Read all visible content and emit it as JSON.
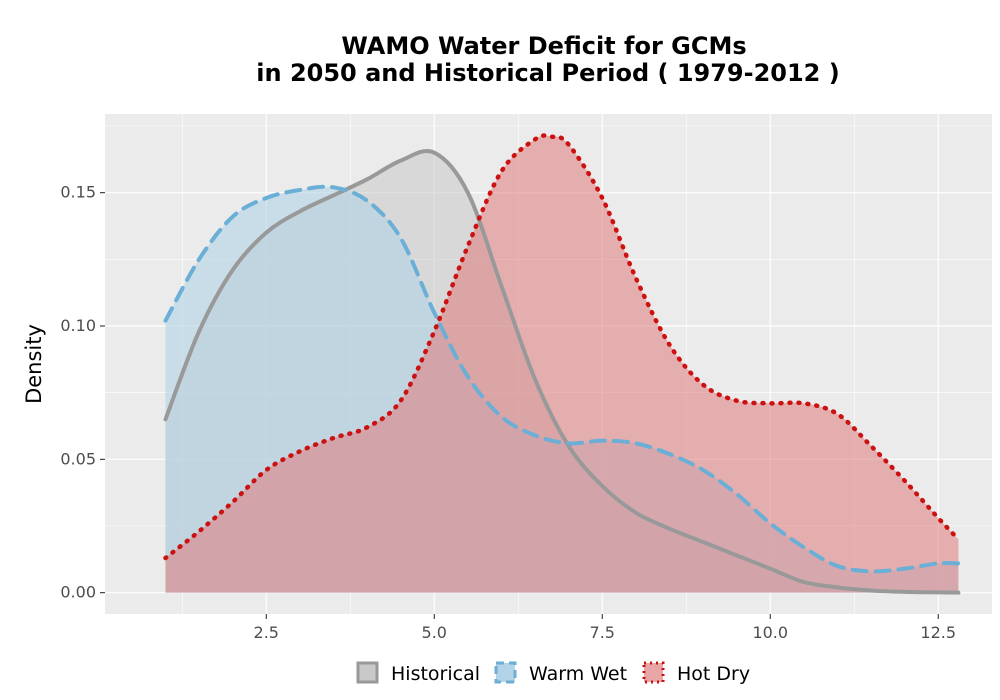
{
  "chart_data": {
    "type": "area",
    "title_line1": "WAMO  Water Deficit for GCMs",
    "title_line2": "in 2050 and Historical Period ( 1979-2012 )",
    "xlabel": "",
    "ylabel": "Density",
    "xlim": [
      0.1,
      13.3
    ],
    "ylim": [
      -0.008,
      0.1795
    ],
    "x_ticks": [
      2.5,
      5.0,
      7.5,
      10.0,
      12.5
    ],
    "x_tick_labels": [
      "2.5",
      "5.0",
      "7.5",
      "10.0",
      "12.5"
    ],
    "y_ticks": [
      0.0,
      0.05,
      0.1,
      0.15
    ],
    "y_tick_labels": [
      "0.00",
      "0.05",
      "0.10",
      "0.15"
    ],
    "grid": true,
    "legend_position": "bottom",
    "series": [
      {
        "name": "Historical",
        "fill": "#c9c9c9",
        "line": "#999999",
        "line_style": "solid",
        "x": [
          1.0,
          1.5,
          2.0,
          2.5,
          3.0,
          3.5,
          4.0,
          4.5,
          5.0,
          5.5,
          6.0,
          6.5,
          7.0,
          7.5,
          8.0,
          8.5,
          9.0,
          9.5,
          10.0,
          10.5,
          11.0,
          11.5,
          12.0,
          12.5,
          12.8
        ],
        "values": [
          0.065,
          0.098,
          0.121,
          0.135,
          0.143,
          0.149,
          0.155,
          0.162,
          0.165,
          0.15,
          0.115,
          0.08,
          0.055,
          0.04,
          0.03,
          0.024,
          0.019,
          0.014,
          0.009,
          0.004,
          0.002,
          0.0008,
          0.0003,
          0.0001,
          0.0
        ]
      },
      {
        "name": "Warm Wet",
        "fill": "#b3d4e8",
        "line": "#6baed6",
        "line_style": "dashed",
        "x": [
          1.0,
          1.5,
          2.0,
          2.5,
          3.0,
          3.5,
          4.0,
          4.5,
          5.0,
          5.5,
          6.0,
          6.5,
          7.0,
          7.5,
          8.0,
          8.5,
          9.0,
          9.5,
          10.0,
          10.5,
          11.0,
          11.5,
          12.0,
          12.5,
          12.8
        ],
        "values": [
          0.102,
          0.125,
          0.141,
          0.148,
          0.151,
          0.152,
          0.147,
          0.133,
          0.105,
          0.081,
          0.066,
          0.059,
          0.056,
          0.057,
          0.056,
          0.052,
          0.046,
          0.037,
          0.026,
          0.017,
          0.01,
          0.008,
          0.009,
          0.011,
          0.011
        ]
      },
      {
        "name": "Hot Dry",
        "fill": "#e07b7b",
        "line": "#cc1111",
        "line_style": "dotted",
        "x": [
          1.0,
          1.5,
          2.0,
          2.5,
          3.0,
          3.5,
          4.0,
          4.5,
          5.0,
          5.5,
          6.0,
          6.5,
          6.75,
          7.0,
          7.5,
          8.0,
          8.5,
          9.0,
          9.5,
          10.0,
          10.5,
          11.0,
          11.5,
          12.0,
          12.5,
          12.8
        ],
        "values": [
          0.013,
          0.023,
          0.034,
          0.046,
          0.053,
          0.058,
          0.062,
          0.072,
          0.098,
          0.13,
          0.158,
          0.17,
          0.171,
          0.168,
          0.148,
          0.118,
          0.093,
          0.078,
          0.072,
          0.071,
          0.071,
          0.067,
          0.055,
          0.042,
          0.028,
          0.02
        ]
      }
    ]
  }
}
